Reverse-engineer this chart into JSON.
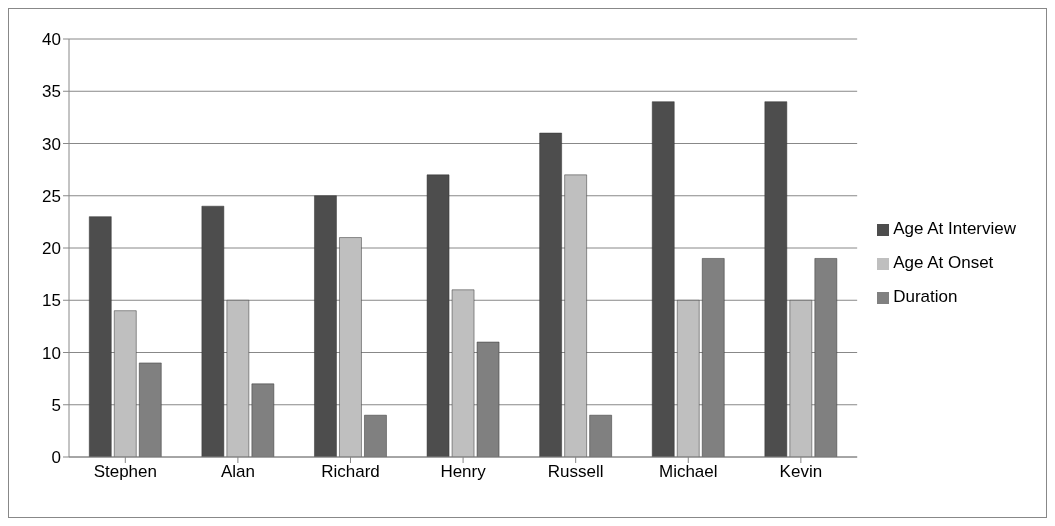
{
  "chart_data": {
    "type": "bar",
    "categories": [
      "Stephen",
      "Alan",
      "Richard",
      "Henry",
      "Russell",
      "Michael",
      "Kevin"
    ],
    "series": [
      {
        "name": "Age At Interview",
        "color": "#4d4d4d",
        "values": [
          23,
          24,
          25,
          27,
          31,
          34,
          34
        ]
      },
      {
        "name": "Age At Onset",
        "color": "#bfbfbf",
        "values": [
          14,
          15,
          21,
          16,
          27,
          15,
          15
        ]
      },
      {
        "name": "Duration",
        "color": "#808080",
        "values": [
          9,
          7,
          4,
          11,
          4,
          19,
          19
        ]
      }
    ],
    "ylim": [
      0,
      40
    ],
    "yticks": [
      0,
      5,
      10,
      15,
      20,
      25,
      30,
      35,
      40
    ],
    "grid": "y",
    "legend": "right"
  }
}
